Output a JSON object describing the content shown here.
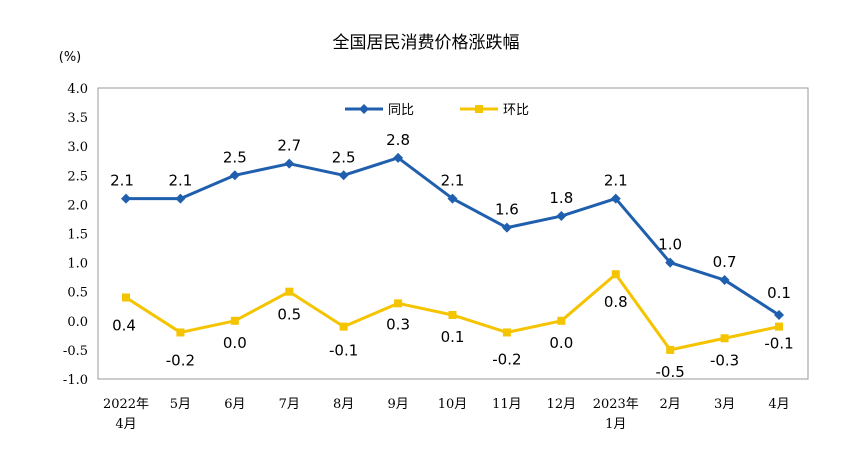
{
  "chart_data": {
    "type": "line",
    "title": "全国居民消费价格涨跌幅",
    "unit_label": "(%)",
    "ylim": [
      -1.0,
      4.0
    ],
    "yticks": [
      "4.0",
      "3.5",
      "3.0",
      "2.5",
      "2.0",
      "1.5",
      "1.0",
      "0.5",
      "0.0",
      "-0.5",
      "-1.0"
    ],
    "categories": [
      "2022年|4月",
      "5月",
      "6月",
      "7月",
      "8月",
      "9月",
      "10月",
      "11月",
      "12月",
      "2023年|1月",
      "2月",
      "3月",
      "4月"
    ],
    "legend_position": "top-center",
    "series": [
      {
        "name": "同比",
        "color": "#1F5FAD",
        "marker": "diamond",
        "values": [
          2.1,
          2.1,
          2.5,
          2.7,
          2.5,
          2.8,
          2.1,
          1.6,
          1.8,
          2.1,
          1.0,
          0.7,
          0.1
        ],
        "labels": [
          "2.1",
          "2.1",
          "2.5",
          "2.7",
          "2.5",
          "2.8",
          "2.1",
          "1.6",
          "1.8",
          "2.1",
          "1.0",
          "0.7",
          "0.1"
        ]
      },
      {
        "name": "环比",
        "color": "#F5C400",
        "marker": "square",
        "values": [
          0.4,
          -0.2,
          0.0,
          0.5,
          -0.1,
          0.3,
          0.1,
          -0.2,
          0.0,
          0.8,
          -0.5,
          -0.3,
          -0.1
        ],
        "labels": [
          "0.4",
          "-0.2",
          "0.0",
          "0.5",
          "-0.1",
          "0.3",
          "0.1",
          "-0.2",
          "0.0",
          "0.8",
          "-0.5",
          "-0.3",
          "-0.1"
        ]
      }
    ]
  }
}
